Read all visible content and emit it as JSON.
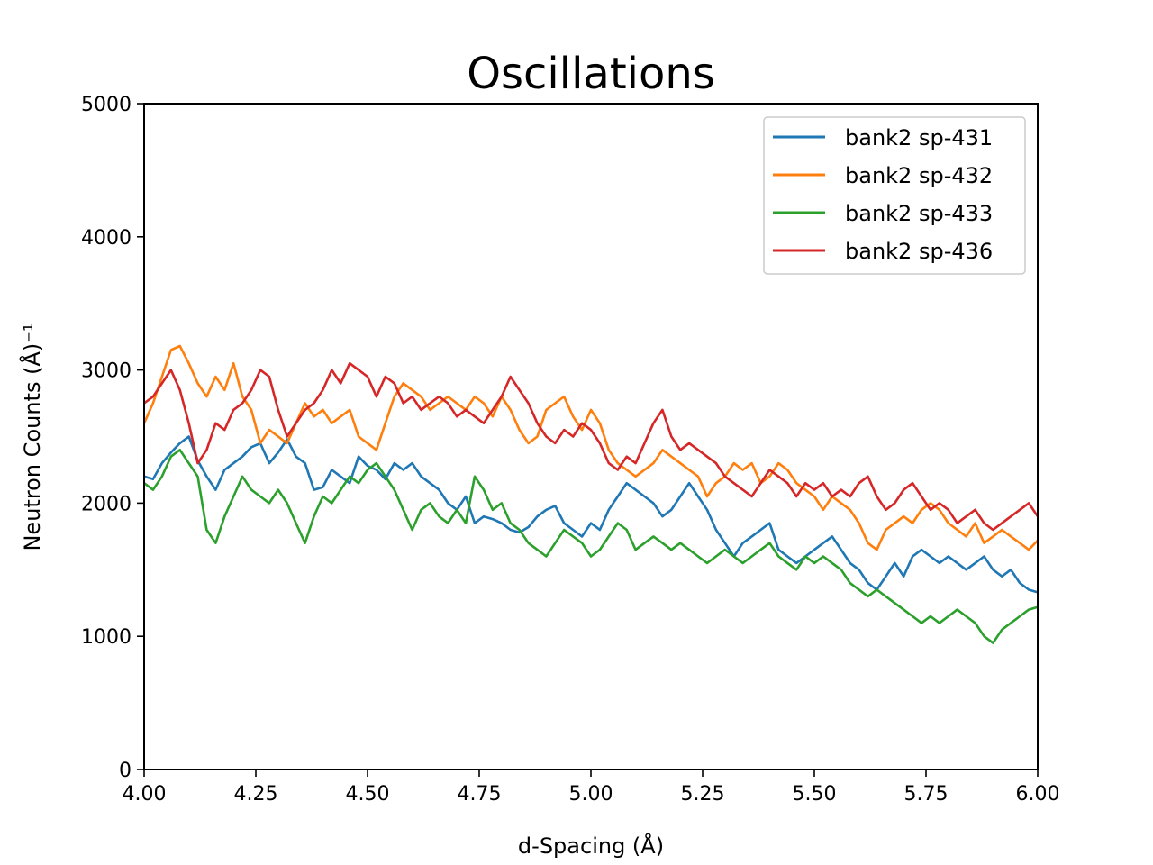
{
  "chart_data": {
    "type": "line",
    "title": "Oscillations",
    "xlabel": "d-Spacing (Å)",
    "ylabel": "Neutron Counts (Å)⁻¹",
    "xlim": [
      4.0,
      6.0
    ],
    "ylim": [
      0,
      5000
    ],
    "x_ticks": [
      "4.00",
      "4.25",
      "4.50",
      "4.75",
      "5.00",
      "5.25",
      "5.50",
      "5.75",
      "6.00"
    ],
    "y_ticks": [
      "0",
      "1000",
      "2000",
      "3000",
      "4000",
      "5000"
    ],
    "grid": false,
    "legend_position": "top-right",
    "x": [
      4.0,
      4.02,
      4.04,
      4.06,
      4.08,
      4.1,
      4.12,
      4.14,
      4.16,
      4.18,
      4.2,
      4.22,
      4.24,
      4.26,
      4.28,
      4.3,
      4.32,
      4.34,
      4.36,
      4.38,
      4.4,
      4.42,
      4.44,
      4.46,
      4.48,
      4.5,
      4.52,
      4.54,
      4.56,
      4.58,
      4.6,
      4.62,
      4.64,
      4.66,
      4.68,
      4.7,
      4.72,
      4.74,
      4.76,
      4.78,
      4.8,
      4.82,
      4.84,
      4.86,
      4.88,
      4.9,
      4.92,
      4.94,
      4.96,
      4.98,
      5.0,
      5.02,
      5.04,
      5.06,
      5.08,
      5.1,
      5.12,
      5.14,
      5.16,
      5.18,
      5.2,
      5.22,
      5.24,
      5.26,
      5.28,
      5.3,
      5.32,
      5.34,
      5.36,
      5.38,
      5.4,
      5.42,
      5.44,
      5.46,
      5.48,
      5.5,
      5.52,
      5.54,
      5.56,
      5.58,
      5.6,
      5.62,
      5.64,
      5.66,
      5.68,
      5.7,
      5.72,
      5.74,
      5.76,
      5.78,
      5.8,
      5.82,
      5.84,
      5.86,
      5.88,
      5.9,
      5.92,
      5.94,
      5.96,
      5.98,
      6.0
    ],
    "series": [
      {
        "name": "bank2 sp-431",
        "color": "#1f77b4",
        "values": [
          2200,
          2180,
          2300,
          2380,
          2450,
          2500,
          2320,
          2200,
          2100,
          2250,
          2300,
          2350,
          2420,
          2450,
          2300,
          2380,
          2480,
          2350,
          2300,
          2100,
          2120,
          2250,
          2200,
          2150,
          2350,
          2280,
          2250,
          2180,
          2300,
          2250,
          2300,
          2200,
          2150,
          2100,
          2000,
          1950,
          2050,
          1850,
          1900,
          1880,
          1850,
          1800,
          1780,
          1820,
          1900,
          1950,
          1980,
          1850,
          1800,
          1750,
          1850,
          1800,
          1950,
          2050,
          2150,
          2100,
          2050,
          2000,
          1900,
          1950,
          2050,
          2150,
          2050,
          1950,
          1800,
          1700,
          1600,
          1700,
          1750,
          1800,
          1850,
          1650,
          1600,
          1550,
          1600,
          1650,
          1700,
          1750,
          1650,
          1550,
          1500,
          1400,
          1350,
          1450,
          1550,
          1450,
          1600,
          1650,
          1600,
          1550,
          1600,
          1550,
          1500,
          1550,
          1600,
          1500,
          1450,
          1500,
          1400,
          1350,
          1330
        ]
      },
      {
        "name": "bank2 sp-432",
        "color": "#ff7f0e",
        "values": [
          2600,
          2750,
          2950,
          3150,
          3180,
          3050,
          2900,
          2800,
          2950,
          2850,
          3050,
          2800,
          2700,
          2450,
          2550,
          2500,
          2450,
          2600,
          2750,
          2650,
          2700,
          2600,
          2650,
          2700,
          2500,
          2450,
          2400,
          2600,
          2800,
          2900,
          2850,
          2800,
          2700,
          2750,
          2800,
          2750,
          2700,
          2800,
          2750,
          2650,
          2800,
          2700,
          2550,
          2450,
          2500,
          2700,
          2750,
          2800,
          2650,
          2550,
          2700,
          2600,
          2400,
          2300,
          2250,
          2200,
          2250,
          2300,
          2400,
          2350,
          2300,
          2250,
          2200,
          2050,
          2150,
          2200,
          2300,
          2250,
          2300,
          2150,
          2200,
          2300,
          2250,
          2150,
          2100,
          2050,
          1950,
          2050,
          2000,
          1950,
          1850,
          1700,
          1650,
          1800,
          1850,
          1900,
          1850,
          1950,
          2000,
          1950,
          1850,
          1800,
          1750,
          1850,
          1700,
          1750,
          1800,
          1750,
          1700,
          1650,
          1720
        ]
      },
      {
        "name": "bank2 sp-433",
        "color": "#2ca02c",
        "values": [
          2150,
          2100,
          2200,
          2350,
          2400,
          2300,
          2200,
          1800,
          1700,
          1900,
          2050,
          2200,
          2100,
          2050,
          2000,
          2100,
          2000,
          1850,
          1700,
          1900,
          2050,
          2000,
          2100,
          2200,
          2150,
          2250,
          2300,
          2200,
          2100,
          1950,
          1800,
          1950,
          2000,
          1900,
          1850,
          1950,
          1850,
          2200,
          2100,
          1950,
          2000,
          1850,
          1800,
          1700,
          1650,
          1600,
          1700,
          1800,
          1750,
          1700,
          1600,
          1650,
          1750,
          1850,
          1800,
          1650,
          1700,
          1750,
          1700,
          1650,
          1700,
          1650,
          1600,
          1550,
          1600,
          1650,
          1600,
          1550,
          1600,
          1650,
          1700,
          1600,
          1550,
          1500,
          1600,
          1550,
          1600,
          1550,
          1500,
          1400,
          1350,
          1300,
          1350,
          1300,
          1250,
          1200,
          1150,
          1100,
          1150,
          1100,
          1150,
          1200,
          1150,
          1100,
          1000,
          950,
          1050,
          1100,
          1150,
          1200,
          1220
        ]
      },
      {
        "name": "bank2 sp-436",
        "color": "#d62728",
        "values": [
          2750,
          2800,
          2900,
          3000,
          2850,
          2600,
          2300,
          2400,
          2600,
          2550,
          2700,
          2750,
          2850,
          3000,
          2950,
          2700,
          2500,
          2600,
          2700,
          2750,
          2850,
          3000,
          2900,
          3050,
          3000,
          2950,
          2800,
          2950,
          2900,
          2750,
          2800,
          2700,
          2750,
          2800,
          2750,
          2650,
          2700,
          2650,
          2600,
          2700,
          2800,
          2950,
          2850,
          2750,
          2600,
          2500,
          2450,
          2550,
          2500,
          2600,
          2550,
          2450,
          2300,
          2250,
          2350,
          2300,
          2450,
          2600,
          2700,
          2500,
          2400,
          2450,
          2400,
          2350,
          2300,
          2200,
          2150,
          2100,
          2050,
          2150,
          2250,
          2200,
          2150,
          2050,
          2150,
          2100,
          2150,
          2050,
          2100,
          2050,
          2150,
          2200,
          2050,
          1950,
          2000,
          2100,
          2150,
          2050,
          1950,
          2000,
          1950,
          1850,
          1900,
          1950,
          1850,
          1800,
          1850,
          1900,
          1950,
          2000,
          1900
        ]
      }
    ]
  }
}
